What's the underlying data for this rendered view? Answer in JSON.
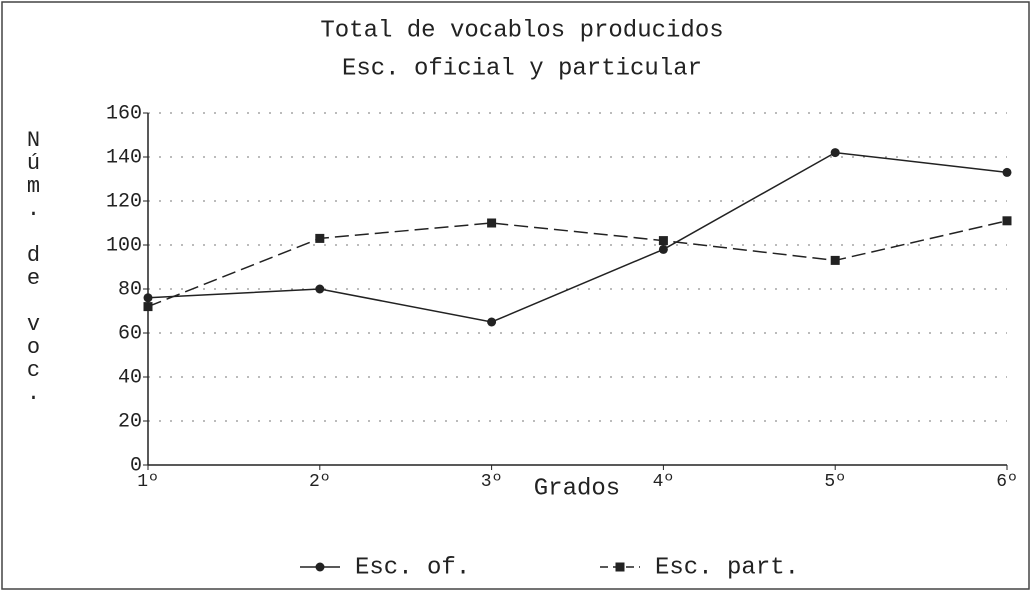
{
  "chart_data": {
    "type": "line",
    "title": "Total de vocablos producidos",
    "subtitle": "Esc. oficial y particular",
    "x_label": "Grados",
    "y_label": "Núm. de voc.",
    "categories": [
      "1º",
      "2º",
      "3º",
      "4º",
      "5º",
      "6º"
    ],
    "series": [
      {
        "name": "Esc. of.",
        "color": "#222222",
        "dash": false,
        "marker": "circle",
        "values": [
          76,
          80,
          65,
          98,
          142,
          133
        ]
      },
      {
        "name": "Esc. part.",
        "color": "#222222",
        "dash": true,
        "marker": "square",
        "values": [
          72,
          103,
          110,
          102,
          93,
          111
        ]
      }
    ],
    "ylim": [
      0,
      160
    ],
    "yticks": [
      0,
      20,
      40,
      60,
      80,
      100,
      120,
      140,
      160
    ],
    "grid": true,
    "legend": "bottom"
  }
}
